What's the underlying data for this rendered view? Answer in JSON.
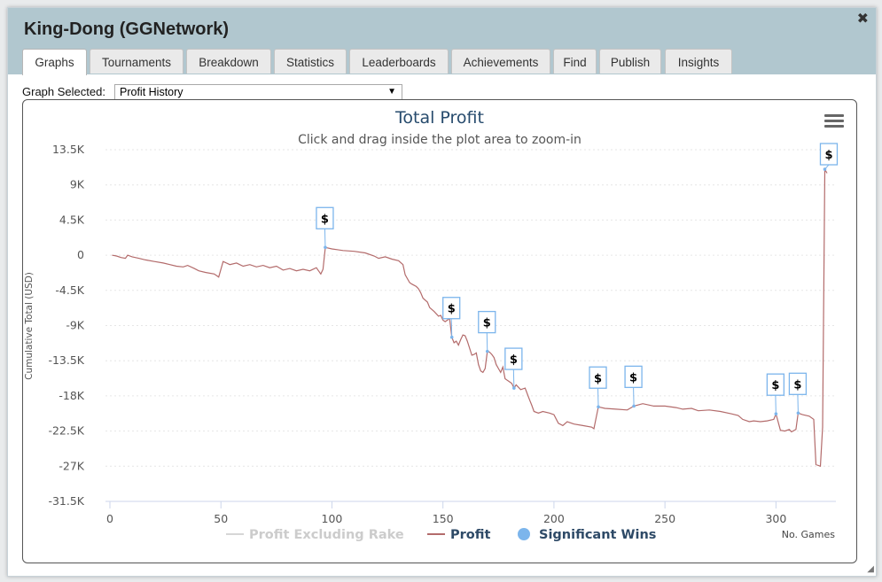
{
  "window": {
    "title": "King-Dong (GGNetwork)"
  },
  "tabs": [
    {
      "label": "Graphs",
      "active": true
    },
    {
      "label": "Tournaments"
    },
    {
      "label": "Breakdown"
    },
    {
      "label": "Statistics"
    },
    {
      "label": "Leaderboards"
    },
    {
      "label": "Achievements"
    },
    {
      "label": "Find"
    },
    {
      "label": "Publish"
    },
    {
      "label": "Insights"
    }
  ],
  "graph_selector": {
    "label": "Graph Selected:",
    "value": "Profit History"
  },
  "icons": {
    "close": "close-icon",
    "menu": "hamburger-menu-icon",
    "marker": "dollar-flag-icon",
    "resize": "resize-handle-icon"
  },
  "colors": {
    "profit": "#b36b6b",
    "significant": "#7cb5ec",
    "rake": "#d6d6d6",
    "title": "#274b6d"
  },
  "chart_data": {
    "type": "line",
    "title": "Total Profit",
    "subtitle": "Click and drag inside the plot area to zoom-in",
    "xlabel": "No. Games",
    "ylabel": "Cumulative Total (USD)",
    "xlim": [
      -2,
      327
    ],
    "ylim": [
      -31500,
      13500
    ],
    "x_ticks": [
      0,
      50,
      100,
      150,
      200,
      250,
      300
    ],
    "y_ticks": [
      13500,
      9000,
      4500,
      0,
      -4500,
      -9000,
      -13500,
      -18000,
      -22500,
      -27000,
      -31500
    ],
    "y_tick_labels": [
      "13.5K",
      "9K",
      "4.5K",
      "0",
      "-4.5K",
      "-9K",
      "-13.5K",
      "-18K",
      "-22.5K",
      "-27K",
      "-31.5K"
    ],
    "legend": [
      {
        "name": "Profit Excluding Rake",
        "visible": false
      },
      {
        "name": "Profit",
        "visible": true
      },
      {
        "name": "Significant Wins",
        "visible": true
      }
    ],
    "series": [
      {
        "name": "Profit",
        "points": [
          [
            1,
            0
          ],
          [
            3,
            -100
          ],
          [
            5,
            -300
          ],
          [
            7,
            -400
          ],
          [
            8,
            0
          ],
          [
            10,
            -200
          ],
          [
            13,
            -400
          ],
          [
            16,
            -600
          ],
          [
            20,
            -800
          ],
          [
            24,
            -1000
          ],
          [
            27,
            -1200
          ],
          [
            30,
            -1400
          ],
          [
            33,
            -1500
          ],
          [
            35,
            -1300
          ],
          [
            38,
            -1700
          ],
          [
            40,
            -2000
          ],
          [
            43,
            -2200
          ],
          [
            47,
            -2400
          ],
          [
            49,
            -2800
          ],
          [
            51,
            -800
          ],
          [
            54,
            -1200
          ],
          [
            57,
            -1000
          ],
          [
            60,
            -1400
          ],
          [
            63,
            -1200
          ],
          [
            66,
            -1500
          ],
          [
            69,
            -1300
          ],
          [
            72,
            -1600
          ],
          [
            75,
            -1400
          ],
          [
            78,
            -1900
          ],
          [
            81,
            -1700
          ],
          [
            84,
            -2000
          ],
          [
            87,
            -1800
          ],
          [
            90,
            -2000
          ],
          [
            93,
            -1600
          ],
          [
            95,
            -2400
          ],
          [
            96,
            -1800
          ],
          [
            97,
            1000
          ],
          [
            100,
            800
          ],
          [
            105,
            600
          ],
          [
            110,
            500
          ],
          [
            115,
            300
          ],
          [
            119,
            -100
          ],
          [
            121,
            -400
          ],
          [
            124,
            -200
          ],
          [
            127,
            -500
          ],
          [
            130,
            -700
          ],
          [
            132,
            -1200
          ],
          [
            133,
            -2500
          ],
          [
            135,
            -3500
          ],
          [
            136,
            -3700
          ],
          [
            138,
            -4000
          ],
          [
            139,
            -4300
          ],
          [
            140,
            -4800
          ],
          [
            141,
            -5500
          ],
          [
            143,
            -6000
          ],
          [
            144,
            -6700
          ],
          [
            146,
            -7200
          ],
          [
            148,
            -7800
          ],
          [
            149,
            -7700
          ],
          [
            150,
            -8300
          ],
          [
            151,
            -8500
          ],
          [
            153,
            -8100
          ],
          [
            154,
            -10500
          ],
          [
            155,
            -11200
          ],
          [
            156,
            -11000
          ],
          [
            157,
            -11500
          ],
          [
            158,
            -10800
          ],
          [
            159,
            -10200
          ],
          [
            160,
            -10300
          ],
          [
            161,
            -11000
          ],
          [
            163,
            -12800
          ],
          [
            164,
            -12700
          ],
          [
            165,
            -12500
          ],
          [
            166,
            -14000
          ],
          [
            167,
            -14800
          ],
          [
            168,
            -15000
          ],
          [
            169,
            -14500
          ],
          [
            170,
            -12300
          ],
          [
            171,
            -12400
          ],
          [
            172,
            -12700
          ],
          [
            173,
            -13100
          ],
          [
            174,
            -14000
          ],
          [
            175,
            -14500
          ],
          [
            176,
            -15000
          ],
          [
            177,
            -14300
          ],
          [
            178,
            -15800
          ],
          [
            179,
            -16000
          ],
          [
            180,
            -16200
          ],
          [
            181,
            -16400
          ],
          [
            182,
            -17000
          ],
          [
            183,
            -16600
          ],
          [
            185,
            -17200
          ],
          [
            187,
            -17000
          ],
          [
            189,
            -18500
          ],
          [
            190,
            -19200
          ],
          [
            191,
            -20000
          ],
          [
            193,
            -20200
          ],
          [
            195,
            -20000
          ],
          [
            198,
            -20200
          ],
          [
            200,
            -20400
          ],
          [
            202,
            -21500
          ],
          [
            204,
            -21800
          ],
          [
            206,
            -21300
          ],
          [
            209,
            -21600
          ],
          [
            213,
            -21800
          ],
          [
            217,
            -22000
          ],
          [
            218,
            -22200
          ],
          [
            220,
            -19400
          ],
          [
            223,
            -19600
          ],
          [
            228,
            -19700
          ],
          [
            233,
            -19800
          ],
          [
            236,
            -19300
          ],
          [
            240,
            -19000
          ],
          [
            245,
            -19300
          ],
          [
            250,
            -19300
          ],
          [
            255,
            -19500
          ],
          [
            258,
            -19700
          ],
          [
            262,
            -19600
          ],
          [
            265,
            -19900
          ],
          [
            270,
            -19800
          ],
          [
            275,
            -20000
          ],
          [
            280,
            -20300
          ],
          [
            283,
            -20500
          ],
          [
            285,
            -21000
          ],
          [
            288,
            -21300
          ],
          [
            290,
            -21200
          ],
          [
            293,
            -21300
          ],
          [
            296,
            -21200
          ],
          [
            299,
            -21000
          ],
          [
            300,
            -20300
          ],
          [
            302,
            -22400
          ],
          [
            304,
            -22500
          ],
          [
            306,
            -22300
          ],
          [
            307,
            -22600
          ],
          [
            309,
            -22300
          ],
          [
            310,
            -20200
          ],
          [
            312,
            -20400
          ],
          [
            315,
            -20600
          ],
          [
            317,
            -21000
          ],
          [
            318,
            -26800
          ],
          [
            320,
            -27000
          ],
          [
            321,
            -22000
          ],
          [
            322,
            11000
          ],
          [
            323,
            10500
          ]
        ]
      },
      {
        "name": "Significant Wins",
        "points": [
          [
            97,
            1000
          ],
          [
            154,
            -10500
          ],
          [
            170,
            -12300
          ],
          [
            182,
            -17000
          ],
          [
            220,
            -19400
          ],
          [
            236,
            -19300
          ],
          [
            300,
            -20300
          ],
          [
            310,
            -20200
          ],
          [
            322,
            11000
          ]
        ]
      }
    ]
  }
}
